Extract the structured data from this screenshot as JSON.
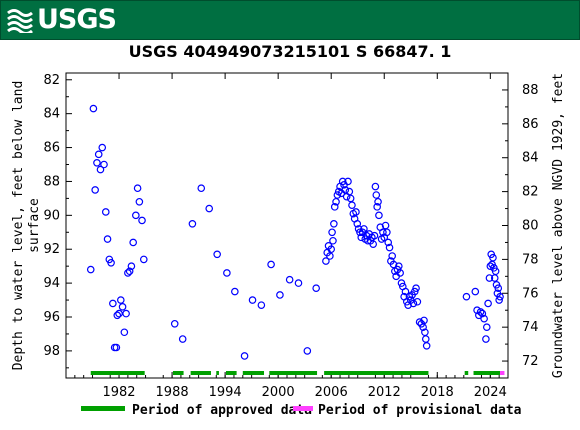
{
  "header": {
    "logo_text": "USGS",
    "logo_icon": "usgs-wave-icon",
    "brand_color": "#006f41"
  },
  "chart_data": {
    "type": "scatter",
    "title": "USGS 404949073215101 S 66847. 1",
    "ylabel_left": "Depth to water level, feet below land surface",
    "ylabel_left_lines": [
      "Depth to water level, feet below land",
      "surface"
    ],
    "ylabel_right": "Groundwater level above NGVD 1929, feet",
    "x_ticks": [
      "1982",
      "1988",
      "1994",
      "2000",
      "2006",
      "2012",
      "2018",
      "2024"
    ],
    "x_tick_values": [
      1982,
      1988,
      1994,
      2000,
      2006,
      2012,
      2018,
      2024
    ],
    "xlim": [
      1976.0,
      2026.0
    ],
    "ylim_left": [
      99.6,
      81.6
    ],
    "yticks_left": [
      82,
      84,
      86,
      88,
      90,
      92,
      94,
      96,
      98
    ],
    "ylim_right": [
      71.0,
      89.0
    ],
    "yticks_right": [
      72,
      74,
      76,
      78,
      80,
      82,
      84,
      86,
      88
    ],
    "marker_color": "#0000ff",
    "approved_color": "#00a000",
    "provisional_color": "#ff40ff",
    "grid": false,
    "series": [
      {
        "name": "Depth to water level",
        "points": [
          [
            1978.8,
            93.2
          ],
          [
            1979.1,
            83.7
          ],
          [
            1979.3,
            88.5
          ],
          [
            1979.5,
            86.9
          ],
          [
            1979.7,
            86.4
          ],
          [
            1979.9,
            87.3
          ],
          [
            1980.1,
            86.0
          ],
          [
            1980.3,
            87.0
          ],
          [
            1980.5,
            89.8
          ],
          [
            1980.7,
            91.4
          ],
          [
            1980.9,
            92.6
          ],
          [
            1981.1,
            92.8
          ],
          [
            1981.3,
            95.2
          ],
          [
            1981.5,
            97.8
          ],
          [
            1981.7,
            97.8
          ],
          [
            1981.8,
            95.9
          ],
          [
            1982.0,
            95.8
          ],
          [
            1982.2,
            95.0
          ],
          [
            1982.4,
            95.4
          ],
          [
            1982.6,
            96.9
          ],
          [
            1982.8,
            95.8
          ],
          [
            1983.0,
            93.4
          ],
          [
            1983.2,
            93.3
          ],
          [
            1983.4,
            93.0
          ],
          [
            1983.6,
            91.6
          ],
          [
            1983.9,
            90.0
          ],
          [
            1984.1,
            88.4
          ],
          [
            1984.3,
            89.2
          ],
          [
            1984.6,
            90.3
          ],
          [
            1984.8,
            92.6
          ],
          [
            1988.3,
            96.4
          ],
          [
            1989.2,
            97.3
          ],
          [
            1990.3,
            90.5
          ],
          [
            1991.3,
            88.4
          ],
          [
            1992.2,
            89.6
          ],
          [
            1993.1,
            92.3
          ],
          [
            1994.2,
            93.4
          ],
          [
            1995.1,
            94.5
          ],
          [
            1996.2,
            98.3
          ],
          [
            1997.1,
            95.0
          ],
          [
            1998.1,
            95.3
          ],
          [
            1999.2,
            92.9
          ],
          [
            2000.2,
            94.7
          ],
          [
            2001.3,
            93.8
          ],
          [
            2002.3,
            94.0
          ],
          [
            2003.3,
            98.0
          ],
          [
            2004.3,
            94.3
          ],
          [
            2005.4,
            92.7
          ],
          [
            2005.55,
            92.2
          ],
          [
            2005.7,
            91.8
          ],
          [
            2005.85,
            92.4
          ],
          [
            2006.0,
            92.0
          ],
          [
            2006.1,
            91.0
          ],
          [
            2006.2,
            91.5
          ],
          [
            2006.3,
            90.5
          ],
          [
            2006.4,
            89.5
          ],
          [
            2006.55,
            89.2
          ],
          [
            2006.7,
            88.8
          ],
          [
            2006.85,
            88.6
          ],
          [
            2007.0,
            88.3
          ],
          [
            2007.15,
            88.7
          ],
          [
            2007.3,
            88.0
          ],
          [
            2007.45,
            88.2
          ],
          [
            2007.6,
            88.5
          ],
          [
            2007.75,
            88.9
          ],
          [
            2007.9,
            88.0
          ],
          [
            2008.05,
            88.6
          ],
          [
            2008.2,
            89.0
          ],
          [
            2008.35,
            89.4
          ],
          [
            2008.5,
            89.9
          ],
          [
            2008.65,
            90.2
          ],
          [
            2008.8,
            89.8
          ],
          [
            2008.95,
            90.5
          ],
          [
            2009.1,
            90.8
          ],
          [
            2009.25,
            91.0
          ],
          [
            2009.4,
            91.3
          ],
          [
            2009.55,
            91.0
          ],
          [
            2009.7,
            90.8
          ],
          [
            2009.85,
            91.4
          ],
          [
            2010.0,
            91.2
          ],
          [
            2010.15,
            91.5
          ],
          [
            2010.3,
            91.1
          ],
          [
            2010.45,
            91.5
          ],
          [
            2010.6,
            91.3
          ],
          [
            2010.75,
            91.7
          ],
          [
            2010.9,
            91.2
          ],
          [
            2011.0,
            88.3
          ],
          [
            2011.1,
            88.8
          ],
          [
            2011.2,
            89.5
          ],
          [
            2011.3,
            89.2
          ],
          [
            2011.4,
            90.0
          ],
          [
            2011.55,
            90.7
          ],
          [
            2011.7,
            91.4
          ],
          [
            2011.85,
            91.0
          ],
          [
            2012.0,
            91.3
          ],
          [
            2012.15,
            90.6
          ],
          [
            2012.3,
            91.0
          ],
          [
            2012.45,
            91.6
          ],
          [
            2012.6,
            91.9
          ],
          [
            2012.75,
            92.7
          ],
          [
            2012.9,
            92.4
          ],
          [
            2013.05,
            92.9
          ],
          [
            2013.2,
            93.3
          ],
          [
            2013.35,
            93.6
          ],
          [
            2013.5,
            93.2
          ],
          [
            2013.65,
            93.0
          ],
          [
            2013.8,
            93.4
          ],
          [
            2013.95,
            94.0
          ],
          [
            2014.1,
            94.2
          ],
          [
            2014.25,
            94.8
          ],
          [
            2014.4,
            94.5
          ],
          [
            2014.55,
            95.1
          ],
          [
            2014.7,
            95.3
          ],
          [
            2014.85,
            94.8
          ],
          [
            2015.0,
            95.0
          ],
          [
            2015.15,
            94.7
          ],
          [
            2015.3,
            95.2
          ],
          [
            2015.45,
            94.5
          ],
          [
            2015.6,
            94.3
          ],
          [
            2015.75,
            95.1
          ],
          [
            2016.0,
            96.3
          ],
          [
            2016.2,
            96.4
          ],
          [
            2016.4,
            96.6
          ],
          [
            2016.5,
            96.2
          ],
          [
            2016.6,
            96.9
          ],
          [
            2016.7,
            97.3
          ],
          [
            2016.8,
            97.7
          ],
          [
            2021.3,
            94.8
          ],
          [
            2022.3,
            94.5
          ],
          [
            2022.5,
            95.6
          ],
          [
            2022.7,
            95.9
          ],
          [
            2022.9,
            95.7
          ],
          [
            2023.1,
            95.8
          ],
          [
            2023.3,
            96.1
          ],
          [
            2023.5,
            97.3
          ],
          [
            2023.6,
            96.6
          ],
          [
            2023.75,
            95.2
          ],
          [
            2023.9,
            93.7
          ],
          [
            2024.0,
            93.0
          ],
          [
            2024.1,
            92.3
          ],
          [
            2024.2,
            92.9
          ],
          [
            2024.3,
            92.5
          ],
          [
            2024.4,
            93.1
          ],
          [
            2024.5,
            93.7
          ],
          [
            2024.6,
            93.3
          ],
          [
            2024.7,
            94.1
          ],
          [
            2024.8,
            94.6
          ],
          [
            2024.9,
            94.3
          ],
          [
            2025.0,
            95.0
          ],
          [
            2025.1,
            94.8
          ]
        ]
      }
    ],
    "periods": {
      "approved": [
        [
          1978.8,
          1984.9
        ],
        [
          1988.1,
          1989.3
        ],
        [
          1990.1,
          1992.4
        ],
        [
          1993.0,
          1993.3
        ],
        [
          1994.1,
          1995.3
        ],
        [
          1996.0,
          1998.4
        ],
        [
          1999.0,
          2004.4
        ],
        [
          2005.2,
          2017.0
        ],
        [
          2021.1,
          2021.5
        ],
        [
          2022.1,
          2025.1
        ]
      ],
      "provisional": [
        [
          2025.1,
          2025.6
        ]
      ]
    },
    "legend": {
      "approved_label": "Period of approved data",
      "provisional_label": "Period of provisional data",
      "placement": "bottom"
    }
  }
}
